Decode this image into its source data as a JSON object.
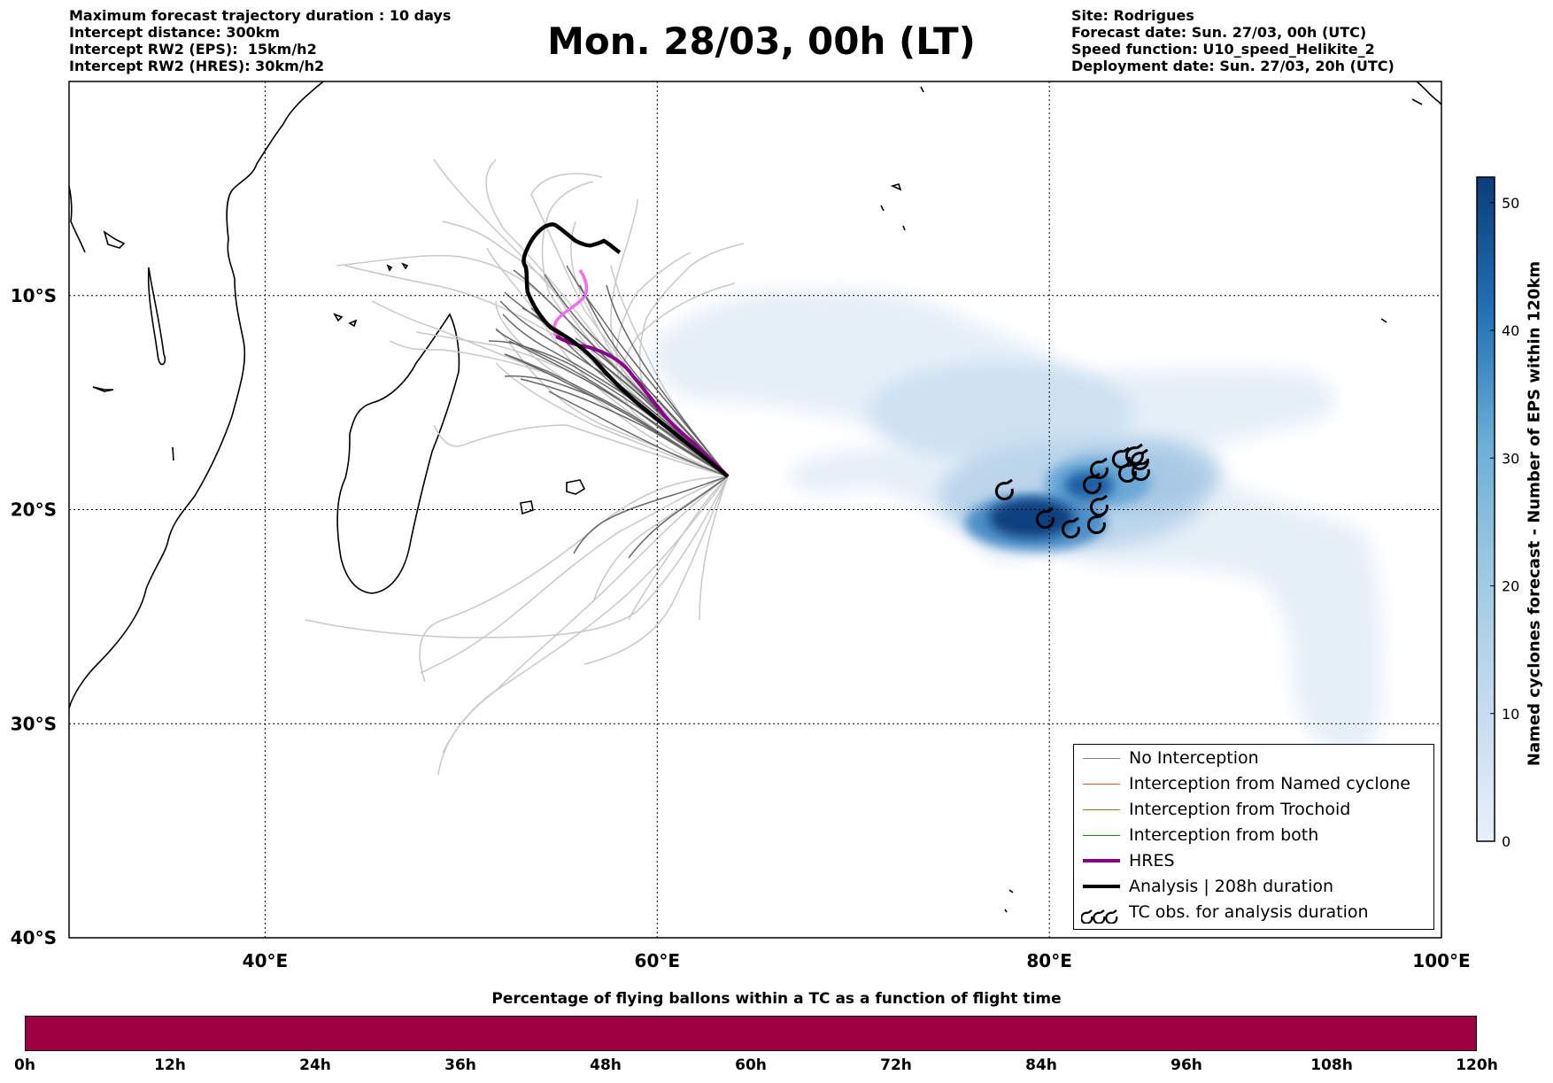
{
  "header_left": [
    "Maximum forecast trajectory duration : 10 days",
    "Intercept distance: 300km",
    "Intercept RW2 (EPS):  15km/h2",
    "Intercept RW2 (HRES): 30km/h2"
  ],
  "title": "Mon. 28/03, 00h (LT)",
  "header_right": [
    "Site: Rodrigues",
    "Forecast date: Sun. 27/03, 00h (UTC)",
    "Speed function: U10_speed_Helikite_2",
    "Deployment date: Sun. 27/03, 20h (UTC)"
  ],
  "map": {
    "lon_range": [
      30,
      100
    ],
    "lat_range": [
      -40,
      0
    ],
    "lon_ticks": [
      "40°E",
      "60°E",
      "80°E",
      "100°E"
    ],
    "lat_ticks": [
      "10°S",
      "20°S",
      "30°S",
      "40°S"
    ],
    "grid": "dotted"
  },
  "legend": [
    {
      "label": "No Interception",
      "color": "#808080",
      "style": "thin"
    },
    {
      "label": "Interception from Named cyclone",
      "color": "#e8501a",
      "style": "thin"
    },
    {
      "label": "Interception from Trochoid",
      "color": "#8a7a10",
      "style": "thin"
    },
    {
      "label": "Interception from both",
      "color": "#1a8a1a",
      "style": "thin"
    },
    {
      "label": "HRES",
      "color": "#8b008b",
      "style": "thick"
    },
    {
      "label": "Analysis | 208h duration",
      "color": "#000000",
      "style": "thick"
    },
    {
      "label": "TC obs. for analysis duration",
      "icon": "cyclone-symbols"
    }
  ],
  "colorbar": {
    "label": "Named cyclones forecast - Number of EPS within 120km",
    "ticks": [
      "0",
      "10",
      "20",
      "30",
      "40",
      "50"
    ],
    "colors": [
      "#e7f0fa",
      "#0b3d7a"
    ]
  },
  "pct_bar": {
    "title": "Percentage of flying ballons within a TC as a function of flight time",
    "ticks": [
      "0h",
      "12h",
      "24h",
      "36h",
      "48h",
      "60h",
      "72h",
      "84h",
      "96h",
      "108h",
      "120h"
    ],
    "color": "#9e0142"
  },
  "release_point": {
    "lon": 63.4,
    "lat": -19.7
  }
}
